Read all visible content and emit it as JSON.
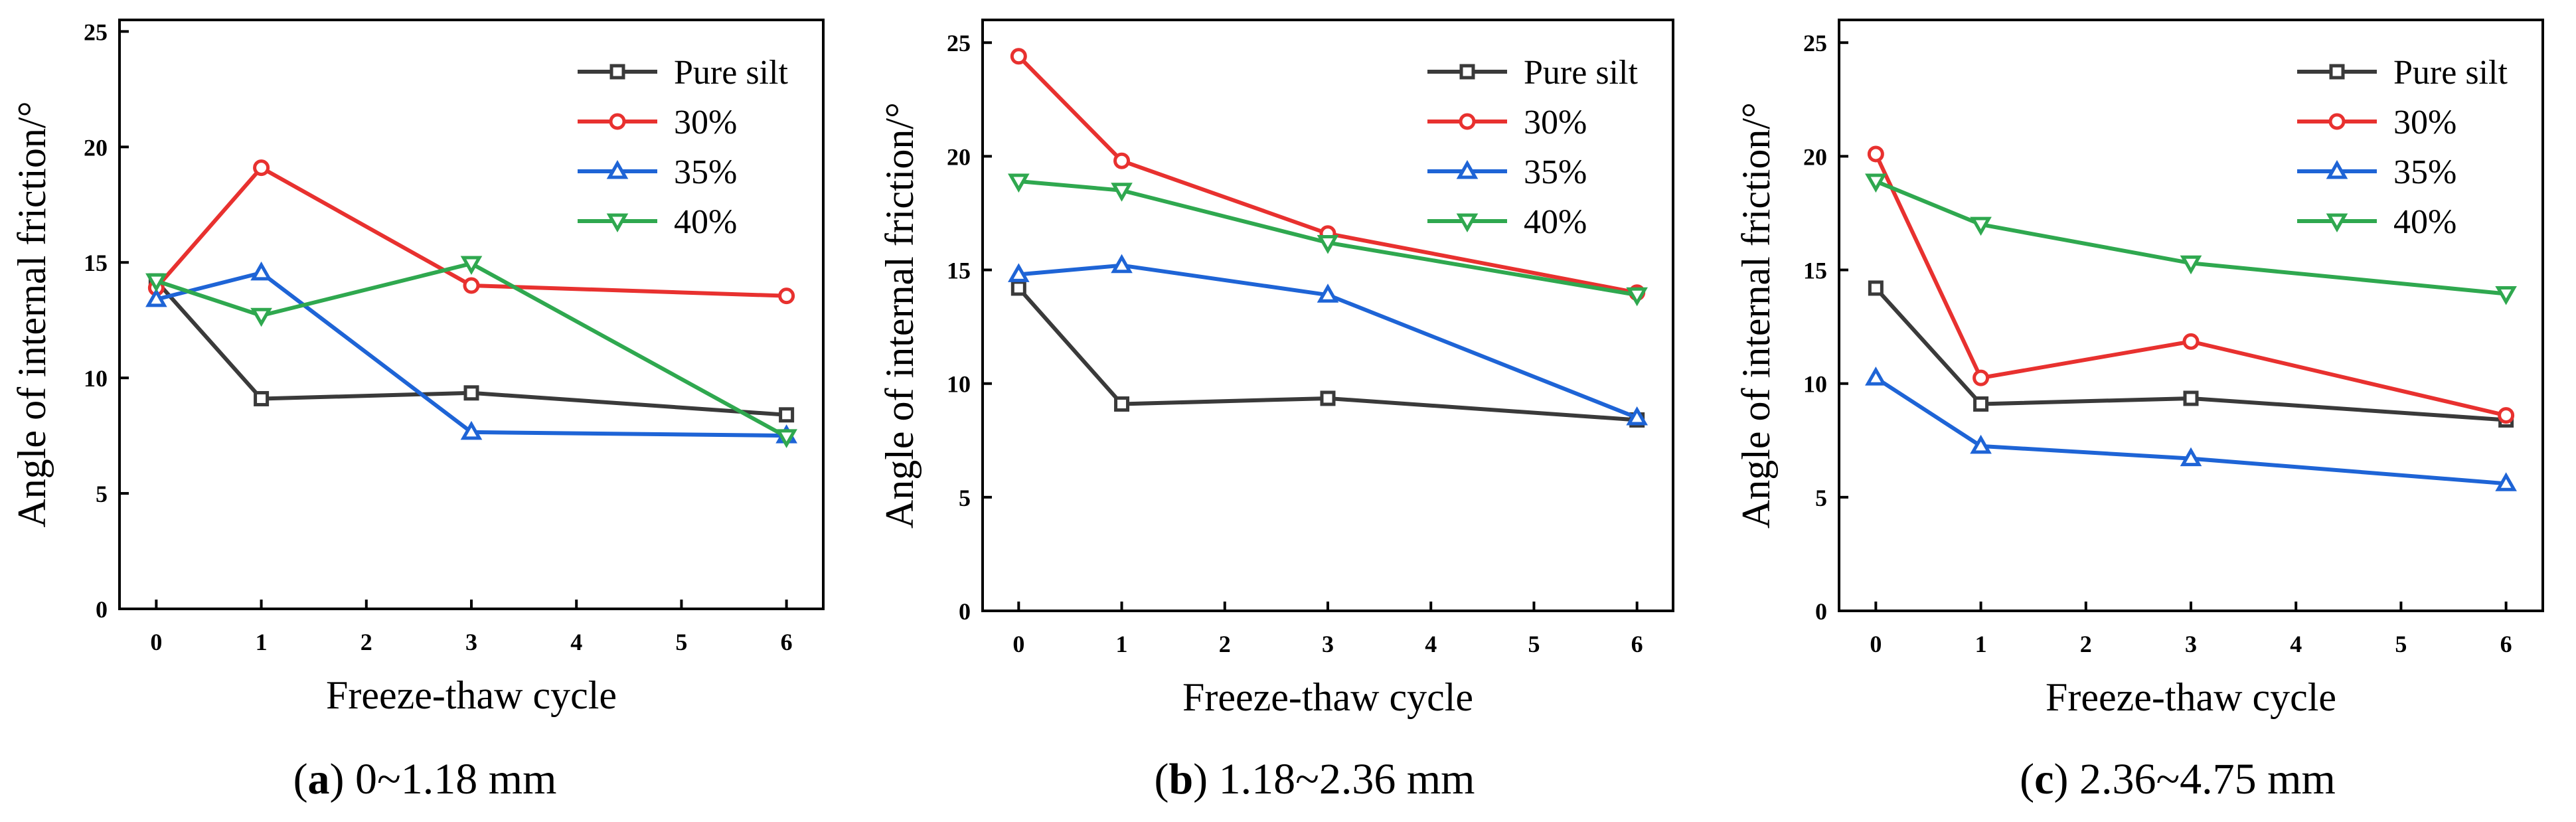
{
  "x_axis_title": "Freeze-thaw cycle",
  "y_axis_title": "Angle of internal friction/°",
  "series_colors": {
    "Pure silt": "#3a3a3a",
    "30%": "#e8312f",
    "35%": "#1e64d6",
    "40%": "#2fa84f"
  },
  "series_markers": {
    "Pure silt": "square",
    "30%": "circle",
    "35%": "triangle-up",
    "40%": "triangle-down"
  },
  "chart_data": [
    {
      "type": "line",
      "caption_letter": "a",
      "caption_text": " 0~1.18 mm",
      "x": [
        0,
        1,
        3,
        6
      ],
      "x_ticks": [
        0,
        1,
        2,
        3,
        4,
        5,
        6
      ],
      "y_ticks": [
        0,
        5,
        10,
        15,
        20,
        25
      ],
      "xlim": [
        -0.35,
        6.35
      ],
      "ylim": [
        0,
        25.5
      ],
      "legend_position": "top-right",
      "series": [
        {
          "name": "Pure silt",
          "values": [
            14.2,
            9.1,
            9.35,
            8.4
          ]
        },
        {
          "name": "30%",
          "values": [
            13.9,
            19.1,
            14.0,
            13.55
          ]
        },
        {
          "name": "35%",
          "values": [
            13.4,
            14.55,
            7.65,
            7.5
          ]
        },
        {
          "name": "40%",
          "values": [
            14.2,
            12.7,
            14.95,
            7.45
          ]
        }
      ]
    },
    {
      "type": "line",
      "caption_letter": "b",
      "caption_text": " 1.18~2.36 mm",
      "x": [
        0,
        1,
        3,
        6
      ],
      "x_ticks": [
        0,
        1,
        2,
        3,
        4,
        5,
        6
      ],
      "y_ticks": [
        0,
        5,
        10,
        15,
        20,
        25
      ],
      "xlim": [
        -0.35,
        6.35
      ],
      "ylim": [
        0,
        26
      ],
      "legend_position": "top-right",
      "series": [
        {
          "name": "Pure silt",
          "values": [
            14.2,
            9.1,
            9.35,
            8.4
          ]
        },
        {
          "name": "30%",
          "values": [
            24.4,
            19.8,
            16.6,
            14.0
          ]
        },
        {
          "name": "35%",
          "values": [
            14.8,
            15.2,
            13.9,
            8.5
          ]
        },
        {
          "name": "40%",
          "values": [
            18.9,
            18.5,
            16.2,
            13.9
          ]
        }
      ]
    },
    {
      "type": "line",
      "caption_letter": "c",
      "caption_text": " 2.36~4.75 mm",
      "x": [
        0,
        1,
        3,
        6
      ],
      "x_ticks": [
        0,
        1,
        2,
        3,
        4,
        5,
        6
      ],
      "y_ticks": [
        0,
        5,
        10,
        15,
        20,
        25
      ],
      "xlim": [
        -0.35,
        6.35
      ],
      "ylim": [
        0,
        26
      ],
      "legend_position": "top-right",
      "series": [
        {
          "name": "Pure silt",
          "values": [
            14.2,
            9.1,
            9.35,
            8.4
          ]
        },
        {
          "name": "30%",
          "values": [
            20.1,
            10.25,
            11.85,
            8.6
          ]
        },
        {
          "name": "35%",
          "values": [
            10.25,
            7.25,
            6.7,
            5.6
          ]
        },
        {
          "name": "40%",
          "values": [
            18.9,
            17.0,
            15.3,
            13.95
          ]
        }
      ]
    }
  ]
}
